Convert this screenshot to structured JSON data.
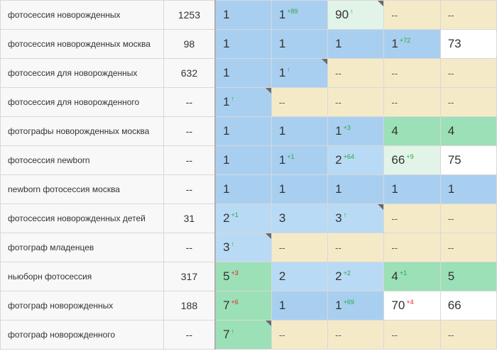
{
  "rows": [
    {
      "keyword": "фотосессия новорожденных",
      "volume": "1253",
      "positions": [
        {
          "value": "1",
          "change": "",
          "dir": "",
          "color": "blue",
          "corner": false
        },
        {
          "value": "1",
          "change": "+89",
          "dir": "up",
          "color": "blue",
          "corner": false
        },
        {
          "value": "90",
          "change": "↑",
          "dir": "up",
          "color": "mint",
          "corner": true
        },
        {
          "value": "--",
          "change": "",
          "dir": "",
          "color": "beige",
          "corner": false
        },
        {
          "value": "--",
          "change": "",
          "dir": "",
          "color": "beige",
          "corner": false
        }
      ]
    },
    {
      "keyword": "фотосессия новорожденных москва",
      "volume": "98",
      "positions": [
        {
          "value": "1",
          "change": "",
          "dir": "",
          "color": "blue",
          "corner": false
        },
        {
          "value": "1",
          "change": "",
          "dir": "",
          "color": "blue",
          "corner": false
        },
        {
          "value": "1",
          "change": "",
          "dir": "",
          "color": "blue",
          "corner": false
        },
        {
          "value": "1",
          "change": "+72",
          "dir": "up",
          "color": "blue",
          "corner": false
        },
        {
          "value": "73",
          "change": "",
          "dir": "",
          "color": "white",
          "corner": false
        }
      ]
    },
    {
      "keyword": "фотосессия для новорожденных",
      "volume": "632",
      "positions": [
        {
          "value": "1",
          "change": "",
          "dir": "",
          "color": "blue",
          "corner": false
        },
        {
          "value": "1",
          "change": "↑",
          "dir": "up",
          "color": "blue",
          "corner": true
        },
        {
          "value": "--",
          "change": "",
          "dir": "",
          "color": "beige",
          "corner": false
        },
        {
          "value": "--",
          "change": "",
          "dir": "",
          "color": "beige",
          "corner": false
        },
        {
          "value": "--",
          "change": "",
          "dir": "",
          "color": "beige",
          "corner": false
        }
      ]
    },
    {
      "keyword": "фотосессия для новорожденного",
      "volume": "--",
      "positions": [
        {
          "value": "1",
          "change": "↑",
          "dir": "up",
          "color": "blue",
          "corner": true
        },
        {
          "value": "--",
          "change": "",
          "dir": "",
          "color": "beige",
          "corner": false
        },
        {
          "value": "--",
          "change": "",
          "dir": "",
          "color": "beige",
          "corner": false
        },
        {
          "value": "--",
          "change": "",
          "dir": "",
          "color": "beige",
          "corner": false
        },
        {
          "value": "--",
          "change": "",
          "dir": "",
          "color": "beige",
          "corner": false
        }
      ]
    },
    {
      "keyword": "фотографы новорожденных москва",
      "volume": "--",
      "positions": [
        {
          "value": "1",
          "change": "",
          "dir": "",
          "color": "blue",
          "corner": false
        },
        {
          "value": "1",
          "change": "",
          "dir": "",
          "color": "blue",
          "corner": false
        },
        {
          "value": "1",
          "change": "+3",
          "dir": "up",
          "color": "blue",
          "corner": false
        },
        {
          "value": "4",
          "change": "",
          "dir": "",
          "color": "green",
          "corner": false
        },
        {
          "value": "4",
          "change": "",
          "dir": "",
          "color": "green",
          "corner": false
        }
      ]
    },
    {
      "keyword": "фотосессия newborn",
      "volume": "--",
      "positions": [
        {
          "value": "1",
          "change": "",
          "dir": "",
          "color": "blue",
          "corner": false
        },
        {
          "value": "1",
          "change": "+1",
          "dir": "up",
          "color": "blue",
          "corner": false
        },
        {
          "value": "2",
          "change": "+64",
          "dir": "up",
          "color": "lblue",
          "corner": false
        },
        {
          "value": "66",
          "change": "+9",
          "dir": "up",
          "color": "mint",
          "corner": false
        },
        {
          "value": "75",
          "change": "",
          "dir": "",
          "color": "white",
          "corner": false
        }
      ]
    },
    {
      "keyword": "newborn фотосессия москва",
      "volume": "--",
      "positions": [
        {
          "value": "1",
          "change": "",
          "dir": "",
          "color": "blue",
          "corner": false
        },
        {
          "value": "1",
          "change": "",
          "dir": "",
          "color": "blue",
          "corner": false
        },
        {
          "value": "1",
          "change": "",
          "dir": "",
          "color": "blue",
          "corner": false
        },
        {
          "value": "1",
          "change": "",
          "dir": "",
          "color": "blue",
          "corner": false
        },
        {
          "value": "1",
          "change": "",
          "dir": "",
          "color": "blue",
          "corner": false
        }
      ]
    },
    {
      "keyword": "фотосессия новорожденных детей",
      "volume": "31",
      "positions": [
        {
          "value": "2",
          "change": "+1",
          "dir": "up",
          "color": "lblue",
          "corner": false
        },
        {
          "value": "3",
          "change": "",
          "dir": "",
          "color": "lblue",
          "corner": false
        },
        {
          "value": "3",
          "change": "↑",
          "dir": "up",
          "color": "lblue",
          "corner": true
        },
        {
          "value": "--",
          "change": "",
          "dir": "",
          "color": "beige",
          "corner": false
        },
        {
          "value": "--",
          "change": "",
          "dir": "",
          "color": "beige",
          "corner": false
        }
      ]
    },
    {
      "keyword": "фотограф младенцев",
      "volume": "--",
      "positions": [
        {
          "value": "3",
          "change": "↑",
          "dir": "up",
          "color": "lblue",
          "corner": true
        },
        {
          "value": "--",
          "change": "",
          "dir": "",
          "color": "beige",
          "corner": false
        },
        {
          "value": "--",
          "change": "",
          "dir": "",
          "color": "beige",
          "corner": false
        },
        {
          "value": "--",
          "change": "",
          "dir": "",
          "color": "beige",
          "corner": false
        },
        {
          "value": "--",
          "change": "",
          "dir": "",
          "color": "beige",
          "corner": false
        }
      ]
    },
    {
      "keyword": "ньюборн фотосессия",
      "volume": "317",
      "positions": [
        {
          "value": "5",
          "change": "+3",
          "dir": "down",
          "color": "green",
          "corner": false
        },
        {
          "value": "2",
          "change": "",
          "dir": "",
          "color": "lblue",
          "corner": false
        },
        {
          "value": "2",
          "change": "+2",
          "dir": "up",
          "color": "lblue",
          "corner": false
        },
        {
          "value": "4",
          "change": "+1",
          "dir": "up",
          "color": "green",
          "corner": false
        },
        {
          "value": "5",
          "change": "",
          "dir": "",
          "color": "green",
          "corner": false
        }
      ]
    },
    {
      "keyword": "фотограф новорожденных",
      "volume": "188",
      "positions": [
        {
          "value": "7",
          "change": "+6",
          "dir": "down",
          "color": "green",
          "corner": false
        },
        {
          "value": "1",
          "change": "",
          "dir": "",
          "color": "blue",
          "corner": false
        },
        {
          "value": "1",
          "change": "+69",
          "dir": "up",
          "color": "blue",
          "corner": false
        },
        {
          "value": "70",
          "change": "+4",
          "dir": "down",
          "color": "white",
          "corner": false
        },
        {
          "value": "66",
          "change": "",
          "dir": "",
          "color": "white",
          "corner": false
        }
      ]
    },
    {
      "keyword": "фотограф новорожденного",
      "volume": "--",
      "positions": [
        {
          "value": "7",
          "change": "↑",
          "dir": "up",
          "color": "green",
          "corner": true
        },
        {
          "value": "--",
          "change": "",
          "dir": "",
          "color": "beige",
          "corner": false
        },
        {
          "value": "--",
          "change": "",
          "dir": "",
          "color": "beige",
          "corner": false
        },
        {
          "value": "--",
          "change": "",
          "dir": "",
          "color": "beige",
          "corner": false
        },
        {
          "value": "--",
          "change": "",
          "dir": "",
          "color": "beige",
          "corner": false
        }
      ]
    }
  ],
  "colors": {
    "blue": "#a9cff0",
    "lblue": "#b9daf4",
    "green": "#9be0b6",
    "mint": "#e1f4e7",
    "beige": "#f5eac8",
    "white": "#ffffff",
    "up": "#28a745",
    "down": "#e0242b"
  }
}
